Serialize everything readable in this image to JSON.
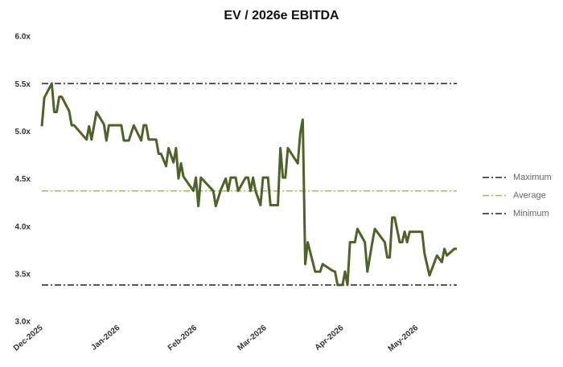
{
  "chart_data": {
    "type": "line",
    "title": "EV / 2026e EBITDA",
    "x": [
      0,
      1,
      4,
      5,
      6,
      7,
      8,
      11,
      12,
      13,
      18,
      19,
      20,
      22,
      25,
      26,
      27,
      32,
      33,
      35,
      37,
      40,
      41,
      42,
      43,
      46,
      47,
      48,
      50,
      51,
      53,
      54,
      55,
      56,
      57,
      61,
      62,
      63,
      64,
      69,
      70,
      72,
      74,
      75,
      76,
      78,
      79,
      82,
      83,
      84,
      85,
      86,
      88,
      89,
      91,
      92,
      95,
      96,
      97,
      98,
      99,
      103,
      104,
      105,
      106,
      107,
      110,
      112,
      113,
      117,
      118,
      119,
      121,
      122,
      123,
      124,
      126,
      127,
      130,
      131,
      133,
      134,
      138,
      139,
      140,
      141,
      142,
      144,
      145,
      146,
      147,
      148,
      153,
      154,
      156,
      159,
      161,
      162,
      163,
      166,
      167
    ],
    "series": [
      {
        "color": "#4f6228",
        "values": [
          5.06,
          5.36,
          5.51,
          5.21,
          5.21,
          5.37,
          5.37,
          5.22,
          5.07,
          5.07,
          4.92,
          5.06,
          4.92,
          5.21,
          5.08,
          4.91,
          5.07,
          5.07,
          4.91,
          4.91,
          5.07,
          4.91,
          5.07,
          5.07,
          4.92,
          4.92,
          4.77,
          4.77,
          4.64,
          4.83,
          4.68,
          4.83,
          4.51,
          4.67,
          4.53,
          4.38,
          4.52,
          4.22,
          4.52,
          4.38,
          4.22,
          4.39,
          4.51,
          4.38,
          4.52,
          4.52,
          4.38,
          4.52,
          4.52,
          4.38,
          4.52,
          4.38,
          4.23,
          4.52,
          4.52,
          4.23,
          4.23,
          4.83,
          4.52,
          4.52,
          4.83,
          4.67,
          4.99,
          5.13,
          3.61,
          3.84,
          3.53,
          3.53,
          3.61,
          3.54,
          3.53,
          3.39,
          3.39,
          3.53,
          3.39,
          3.84,
          3.84,
          3.98,
          3.84,
          3.53,
          3.84,
          3.98,
          3.84,
          3.68,
          3.68,
          4.1,
          4.1,
          3.84,
          3.84,
          3.95,
          3.84,
          3.95,
          3.95,
          3.72,
          3.49,
          3.7,
          3.63,
          3.77,
          3.7,
          3.77,
          3.77
        ]
      }
    ],
    "reference_lines": [
      {
        "name": "Maximum",
        "value": 5.51,
        "color": "#222222"
      },
      {
        "name": "Average",
        "value": 4.38,
        "color": "#9bbb59"
      },
      {
        "name": "Minimum",
        "value": 3.39,
        "color": "#222222"
      }
    ],
    "xlim": [
      0,
      167
    ],
    "xticks": [
      {
        "value": 0,
        "label": "Dec-2025"
      },
      {
        "value": 31,
        "label": "Jan-2026"
      },
      {
        "value": 62,
        "label": "Feb-2026"
      },
      {
        "value": 90,
        "label": "Mar-2026"
      },
      {
        "value": 121,
        "label": "Apr-2026"
      },
      {
        "value": 151,
        "label": "May-2026"
      }
    ],
    "ylim": [
      3,
      6
    ],
    "yticks": [
      {
        "value": 3,
        "label": "3.0x"
      },
      {
        "value": 3.5,
        "label": "3.5x"
      },
      {
        "value": 4,
        "label": "4.0x"
      },
      {
        "value": 4.5,
        "label": "4.5x"
      },
      {
        "value": 5,
        "label": "5.0x"
      },
      {
        "value": 5.5,
        "label": "5.5x"
      },
      {
        "value": 6,
        "label": "6.0x"
      }
    ],
    "legend": "right"
  }
}
